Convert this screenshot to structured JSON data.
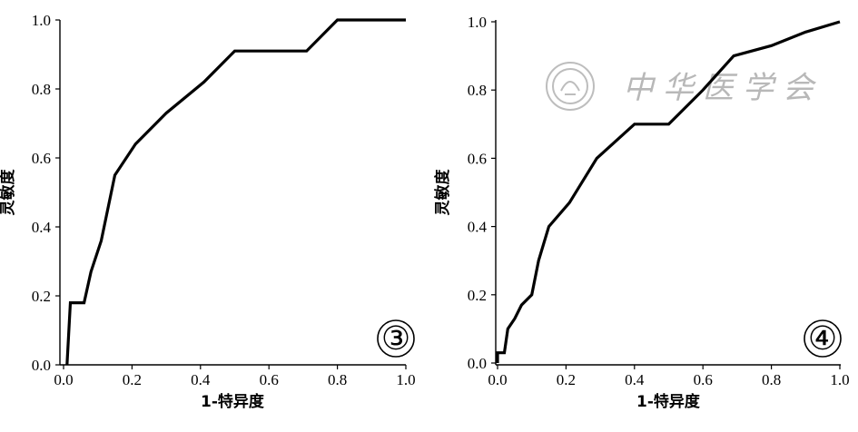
{
  "chart_data": [
    {
      "type": "line",
      "panel_label": "③",
      "xlabel": "1-特异度",
      "ylabel": "灵敏度",
      "xlim": [
        0.0,
        1.0
      ],
      "ylim": [
        0.0,
        1.0
      ],
      "x_ticks": [
        "0.0",
        "0.2",
        "0.4",
        "0.6",
        "0.8",
        "1.0"
      ],
      "y_ticks": [
        "0.0",
        "0.2",
        "0.4",
        "0.6",
        "0.8",
        "1.0"
      ],
      "grid": false,
      "series": [
        {
          "x": [
            0.01,
            0.02,
            0.06,
            0.08,
            0.11,
            0.15,
            0.21,
            0.3,
            0.41,
            0.5,
            0.71,
            0.8,
            1.0
          ],
          "y": [
            0.0,
            0.18,
            0.18,
            0.27,
            0.36,
            0.55,
            0.64,
            0.73,
            0.82,
            0.91,
            0.91,
            1.0,
            1.0
          ]
        }
      ]
    },
    {
      "type": "line",
      "panel_label": "④",
      "xlabel": "1-特异度",
      "ylabel": "灵敏度",
      "xlim": [
        0.0,
        1.0
      ],
      "ylim": [
        0.0,
        1.0
      ],
      "x_ticks": [
        "0.0",
        "0.2",
        "0.4",
        "0.6",
        "0.8",
        "1.0"
      ],
      "y_ticks": [
        "0.0",
        "0.2",
        "0.4",
        "0.6",
        "0.8",
        "1.0"
      ],
      "grid": false,
      "series": [
        {
          "x": [
            0.0,
            0.0,
            0.02,
            0.03,
            0.05,
            0.07,
            0.1,
            0.12,
            0.15,
            0.21,
            0.29,
            0.4,
            0.5,
            0.6,
            0.69,
            0.8,
            0.9,
            1.0
          ],
          "y": [
            0.0,
            0.03,
            0.03,
            0.1,
            0.13,
            0.17,
            0.2,
            0.3,
            0.4,
            0.47,
            0.6,
            0.7,
            0.7,
            0.8,
            0.9,
            0.93,
            0.97,
            1.0
          ]
        }
      ]
    }
  ],
  "watermark": {
    "text": "中华医学会",
    "icon": "society-seal-icon"
  }
}
